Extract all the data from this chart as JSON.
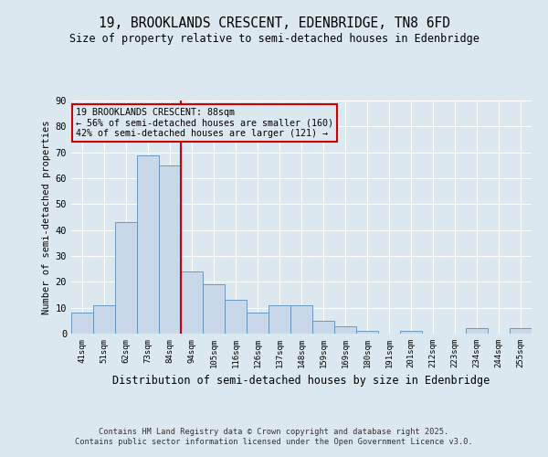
{
  "title": "19, BROOKLANDS CRESCENT, EDENBRIDGE, TN8 6FD",
  "subtitle": "Size of property relative to semi-detached houses in Edenbridge",
  "xlabel": "Distribution of semi-detached houses by size in Edenbridge",
  "ylabel": "Number of semi-detached properties",
  "categories": [
    "41sqm",
    "51sqm",
    "62sqm",
    "73sqm",
    "84sqm",
    "94sqm",
    "105sqm",
    "116sqm",
    "126sqm",
    "137sqm",
    "148sqm",
    "159sqm",
    "169sqm",
    "180sqm",
    "191sqm",
    "201sqm",
    "212sqm",
    "223sqm",
    "234sqm",
    "244sqm",
    "255sqm"
  ],
  "values": [
    8,
    11,
    43,
    69,
    65,
    24,
    19,
    13,
    8,
    11,
    11,
    5,
    3,
    1,
    0,
    1,
    0,
    0,
    2,
    0,
    2
  ],
  "bar_color": "#c8d8e8",
  "bar_edge_color": "#5b8db8",
  "marker_index": 4,
  "marker_color": "#cc0000",
  "ylim": [
    0,
    90
  ],
  "yticks": [
    0,
    10,
    20,
    30,
    40,
    50,
    60,
    70,
    80,
    90
  ],
  "annotation_text": "19 BROOKLANDS CRESCENT: 88sqm\n← 56% of semi-detached houses are smaller (160)\n42% of semi-detached houses are larger (121) →",
  "bg_color": "#dce8f0",
  "footer_line1": "Contains HM Land Registry data © Crown copyright and database right 2025.",
  "footer_line2": "Contains public sector information licensed under the Open Government Licence v3.0."
}
